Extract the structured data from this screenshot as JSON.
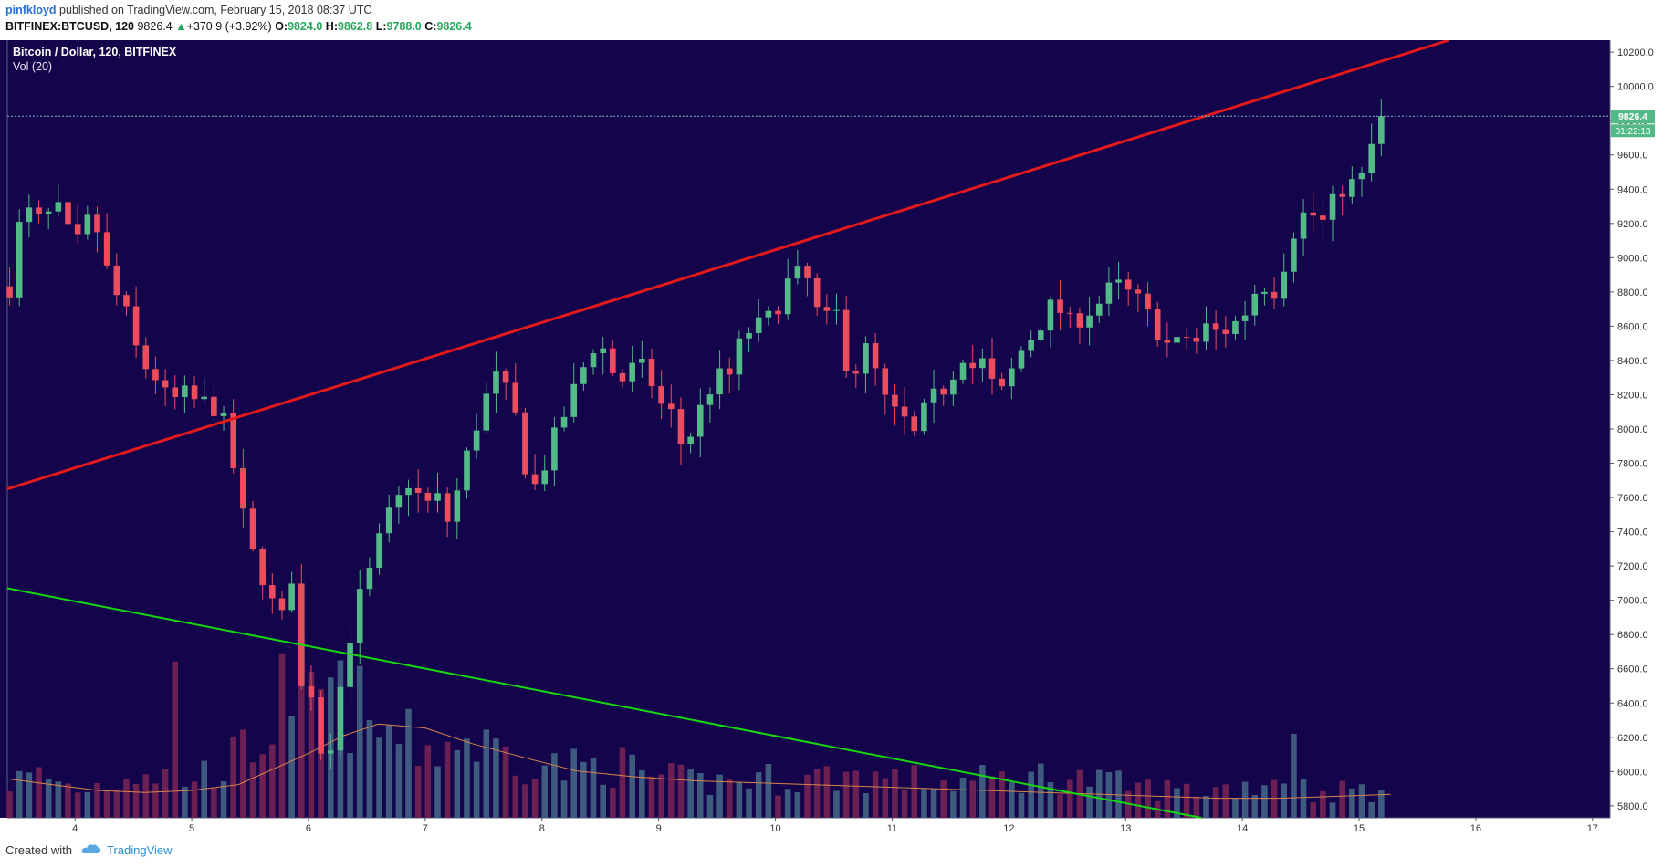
{
  "header": {
    "author": "pinfkloyd",
    "published_text": "published on TradingView.com, February 15, 2018 08:37 UTC",
    "symbol": "BITFINEX:BTCUSD, 120",
    "last": "9826.4",
    "change_arrow": "▲",
    "change": "+370.9 (+3.92%)",
    "o_label": "O:",
    "o_value": "9824.0",
    "h_label": "H:",
    "h_value": "9862.8",
    "l_label": "L:",
    "l_value": "9788.0",
    "c_label": "C:",
    "c_value": "9826.4"
  },
  "legend": {
    "title": "Bitcoin / Dollar, 120, BITFINEX",
    "indicator": "Vol (20)"
  },
  "price_tag": {
    "price": "9826.4",
    "countdown": "01:22:13"
  },
  "footer": {
    "created_with": "Created with",
    "brand": "TradingView"
  },
  "colors": {
    "background": "#14044b",
    "bull": "#53b987",
    "bear": "#eb4d5c",
    "bull_volume": "#3e5a7e",
    "bear_volume": "#6a2052",
    "resistance_line": "#e41a1a",
    "support_line": "#17d80f",
    "volume_ma": "#d9834a"
  },
  "chart_data": {
    "type": "candlestick",
    "timeframe_minutes": 120,
    "x_ticks": [
      "4",
      "5",
      "6",
      "7",
      "8",
      "9",
      "10",
      "11",
      "12",
      "13",
      "14",
      "15",
      "16",
      "17"
    ],
    "x_range_days": [
      3.42,
      17.15
    ],
    "y_ticks": [
      5800,
      6000,
      6200,
      6400,
      6600,
      6800,
      7000,
      7200,
      7400,
      7600,
      7800,
      8000,
      8200,
      8400,
      8600,
      8800,
      9000,
      9200,
      9400,
      9600,
      9800,
      10000,
      10200
    ],
    "y_tick_labels": [
      "5800.0",
      "6000.0",
      "6200.0",
      "6400.0",
      "6600.0",
      "6800.0",
      "7000.0",
      "7200.0",
      "7400.0",
      "7600.0",
      "7800.0",
      "8000.0",
      "8200.0",
      "8400.0",
      "8600.0",
      "8800.0",
      "9000.0",
      "9200.0",
      "9400.0",
      "9600.0",
      "9800.0",
      "10000.0",
      "10200.0"
    ],
    "y_range": [
      5730,
      10270
    ],
    "last_price": 9826.4,
    "close_path": [
      [
        3.42,
        8750
      ],
      [
        3.55,
        9290
      ],
      [
        3.7,
        9210
      ],
      [
        3.85,
        9280
      ],
      [
        4.0,
        9050
      ],
      [
        4.15,
        9270
      ],
      [
        4.3,
        8850
      ],
      [
        4.45,
        8650
      ],
      [
        4.55,
        8400
      ],
      [
        4.7,
        8300
      ],
      [
        4.8,
        8150
      ],
      [
        4.95,
        8200
      ],
      [
        5.05,
        8150
      ],
      [
        5.15,
        8150
      ],
      [
        5.25,
        8100
      ],
      [
        5.35,
        7800
      ],
      [
        5.45,
        7450
      ],
      [
        5.55,
        7200
      ],
      [
        5.65,
        7100
      ],
      [
        5.75,
        6800
      ],
      [
        5.85,
        7200
      ],
      [
        5.95,
        6400
      ],
      [
        6.05,
        6500
      ],
      [
        6.12,
        6050
      ],
      [
        6.2,
        6200
      ],
      [
        6.3,
        6600
      ],
      [
        6.4,
        6950
      ],
      [
        6.55,
        7200
      ],
      [
        6.65,
        7450
      ],
      [
        6.75,
        7550
      ],
      [
        6.85,
        7700
      ],
      [
        7.0,
        7550
      ],
      [
        7.1,
        7600
      ],
      [
        7.2,
        7450
      ],
      [
        7.3,
        7700
      ],
      [
        7.4,
        7950
      ],
      [
        7.5,
        8150
      ],
      [
        7.6,
        8300
      ],
      [
        7.75,
        8150
      ],
      [
        7.85,
        7800
      ],
      [
        7.95,
        7650
      ],
      [
        8.05,
        7850
      ],
      [
        8.2,
        8100
      ],
      [
        8.35,
        8350
      ],
      [
        8.45,
        8500
      ],
      [
        8.55,
        8450
      ],
      [
        8.65,
        8250
      ],
      [
        8.75,
        8350
      ],
      [
        8.9,
        8350
      ],
      [
        9.0,
        8150
      ],
      [
        9.1,
        8100
      ],
      [
        9.2,
        7900
      ],
      [
        9.3,
        8000
      ],
      [
        9.4,
        8200
      ],
      [
        9.5,
        8300
      ],
      [
        9.6,
        8300
      ],
      [
        9.7,
        8500
      ],
      [
        9.8,
        8600
      ],
      [
        9.9,
        8600
      ],
      [
        10.0,
        8700
      ],
      [
        10.1,
        8850
      ],
      [
        10.2,
        8900
      ],
      [
        10.3,
        8850
      ],
      [
        10.4,
        8550
      ],
      [
        10.5,
        8750
      ],
      [
        10.6,
        8400
      ],
      [
        10.7,
        8350
      ],
      [
        10.8,
        8500
      ],
      [
        10.9,
        8200
      ],
      [
        11.0,
        8100
      ],
      [
        11.1,
        8050
      ],
      [
        11.2,
        7950
      ],
      [
        11.3,
        8150
      ],
      [
        11.4,
        8200
      ],
      [
        11.5,
        8300
      ],
      [
        11.6,
        8450
      ],
      [
        11.7,
        8350
      ],
      [
        11.8,
        8400
      ],
      [
        11.9,
        8150
      ],
      [
        12.0,
        8300
      ],
      [
        12.1,
        8450
      ],
      [
        12.2,
        8550
      ],
      [
        12.3,
        8650
      ],
      [
        12.4,
        8750
      ],
      [
        12.5,
        8600
      ],
      [
        12.6,
        8650
      ],
      [
        12.7,
        8700
      ],
      [
        12.8,
        8750
      ],
      [
        12.9,
        8850
      ],
      [
        13.0,
        8800
      ],
      [
        13.1,
        8750
      ],
      [
        13.2,
        8650
      ],
      [
        13.3,
        8550
      ],
      [
        13.4,
        8450
      ],
      [
        13.5,
        8550
      ],
      [
        13.6,
        8500
      ],
      [
        13.7,
        8600
      ],
      [
        13.8,
        8550
      ],
      [
        13.9,
        8600
      ],
      [
        14.0,
        8650
      ],
      [
        14.1,
        8800
      ],
      [
        14.2,
        8850
      ],
      [
        14.3,
        8800
      ],
      [
        14.4,
        9100
      ],
      [
        14.5,
        9250
      ],
      [
        14.6,
        9250
      ],
      [
        14.7,
        9200
      ],
      [
        14.8,
        9350
      ],
      [
        14.9,
        9450
      ],
      [
        15.0,
        9400
      ],
      [
        15.1,
        9650
      ],
      [
        15.2,
        9700
      ],
      [
        15.27,
        9826.4
      ]
    ],
    "trendlines": [
      {
        "points": [
          [
            3.42,
            7650
          ],
          [
            15.77,
            10270
          ]
        ]
      },
      {
        "points": [
          [
            3.42,
            7070
          ],
          [
            13.65,
            5730
          ]
        ]
      }
    ],
    "volume_profile": [
      [
        3.42,
        0.18
      ],
      [
        3.7,
        0.22
      ],
      [
        4.0,
        0.15
      ],
      [
        4.3,
        0.18
      ],
      [
        4.5,
        0.25
      ],
      [
        4.8,
        0.22
      ],
      [
        5.0,
        0.2
      ],
      [
        5.2,
        0.25
      ],
      [
        5.5,
        0.35
      ],
      [
        5.7,
        0.5
      ],
      [
        5.85,
        0.75
      ],
      [
        6.0,
        0.65
      ],
      [
        6.2,
        0.6
      ],
      [
        6.45,
        0.55
      ],
      [
        6.6,
        0.45
      ],
      [
        6.8,
        0.4
      ],
      [
        7.0,
        0.35
      ],
      [
        7.3,
        0.4
      ],
      [
        7.6,
        0.35
      ],
      [
        7.9,
        0.3
      ],
      [
        8.2,
        0.25
      ],
      [
        8.6,
        0.28
      ],
      [
        9.0,
        0.2
      ],
      [
        9.4,
        0.18
      ],
      [
        9.8,
        0.2
      ],
      [
        10.2,
        0.2
      ],
      [
        10.6,
        0.22
      ],
      [
        11.0,
        0.2
      ],
      [
        11.5,
        0.18
      ],
      [
        12.0,
        0.2
      ],
      [
        12.4,
        0.22
      ],
      [
        12.8,
        0.18
      ],
      [
        13.2,
        0.15
      ],
      [
        13.6,
        0.14
      ],
      [
        14.0,
        0.16
      ],
      [
        14.4,
        0.22
      ],
      [
        14.6,
        0.12
      ],
      [
        15.0,
        0.15
      ],
      [
        15.27,
        0.12
      ]
    ],
    "volume_spikes": [
      [
        4.82,
        0.8
      ],
      [
        14.43,
        0.43
      ],
      [
        5.82,
        0.52
      ],
      [
        6.5,
        0.5
      ]
    ],
    "volume_ma_path": [
      [
        3.42,
        0.2
      ],
      [
        3.8,
        0.17
      ],
      [
        4.2,
        0.14
      ],
      [
        4.6,
        0.13
      ],
      [
        5.0,
        0.14
      ],
      [
        5.4,
        0.17
      ],
      [
        5.7,
        0.25
      ],
      [
        6.0,
        0.33
      ],
      [
        6.3,
        0.42
      ],
      [
        6.6,
        0.48
      ],
      [
        7.0,
        0.46
      ],
      [
        7.4,
        0.38
      ],
      [
        7.9,
        0.3
      ],
      [
        8.3,
        0.24
      ],
      [
        8.8,
        0.21
      ],
      [
        9.3,
        0.19
      ],
      [
        9.8,
        0.18
      ],
      [
        10.3,
        0.17
      ],
      [
        10.8,
        0.16
      ],
      [
        11.3,
        0.15
      ],
      [
        11.8,
        0.14
      ],
      [
        12.3,
        0.13
      ],
      [
        12.8,
        0.12
      ],
      [
        13.3,
        0.11
      ],
      [
        13.8,
        0.1
      ],
      [
        14.3,
        0.1
      ],
      [
        14.8,
        0.11
      ],
      [
        15.27,
        0.12
      ]
    ]
  }
}
